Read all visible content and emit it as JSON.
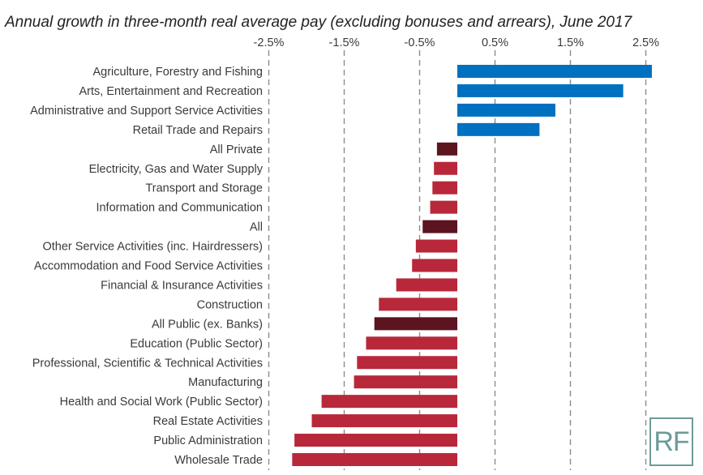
{
  "chart_data": {
    "type": "bar",
    "orientation": "horizontal",
    "title": "Annual growth in three-month real average pay (excluding bonuses and arrears), June 2017",
    "xlim": [
      -2.5,
      2.9
    ],
    "tick_values": [
      -2.5,
      -1.5,
      -0.5,
      0.5,
      1.5,
      2.5
    ],
    "tick_labels": [
      "-2.5%",
      "-1.5%",
      "-0.5%",
      "0.5%",
      "1.5%",
      "2.5%"
    ],
    "grid": "vertical dashed",
    "axis_position": "top",
    "categories": [
      "Agriculture, Forestry and Fishing",
      "Arts, Entertainment and Recreation",
      "Administrative and Support Service Activities",
      "Retail Trade and Repairs",
      "All Private",
      "Electricity, Gas and Water Supply",
      "Transport and Storage",
      "Information and Communication",
      "All",
      "Other Service Activities (inc. Hairdressers)",
      "Accommodation and Food Service Activities",
      "Financial & Insurance Activities",
      "Construction",
      "All Public (ex. Banks)",
      "Education (Public Sector)",
      "Professional, Scientific & Technical Activities",
      "Manufacturing",
      "Health and Social Work (Public Sector)",
      "Real Estate Activities",
      "Public Administration",
      "Wholesale Trade"
    ],
    "values": [
      2.58,
      2.2,
      1.3,
      1.09,
      -0.27,
      -0.31,
      -0.33,
      -0.36,
      -0.46,
      -0.55,
      -0.6,
      -0.81,
      -1.04,
      -1.1,
      -1.21,
      -1.33,
      -1.37,
      -1.8,
      -1.93,
      -2.16,
      -2.19
    ],
    "colors": {
      "positive": "#0070c0",
      "negative": "#b8283a",
      "aggregate": "#5c1420"
    },
    "aggregate_categories": [
      "All Private",
      "All",
      "All Public (ex. Banks)"
    ]
  },
  "logo": {
    "text": "RF"
  }
}
